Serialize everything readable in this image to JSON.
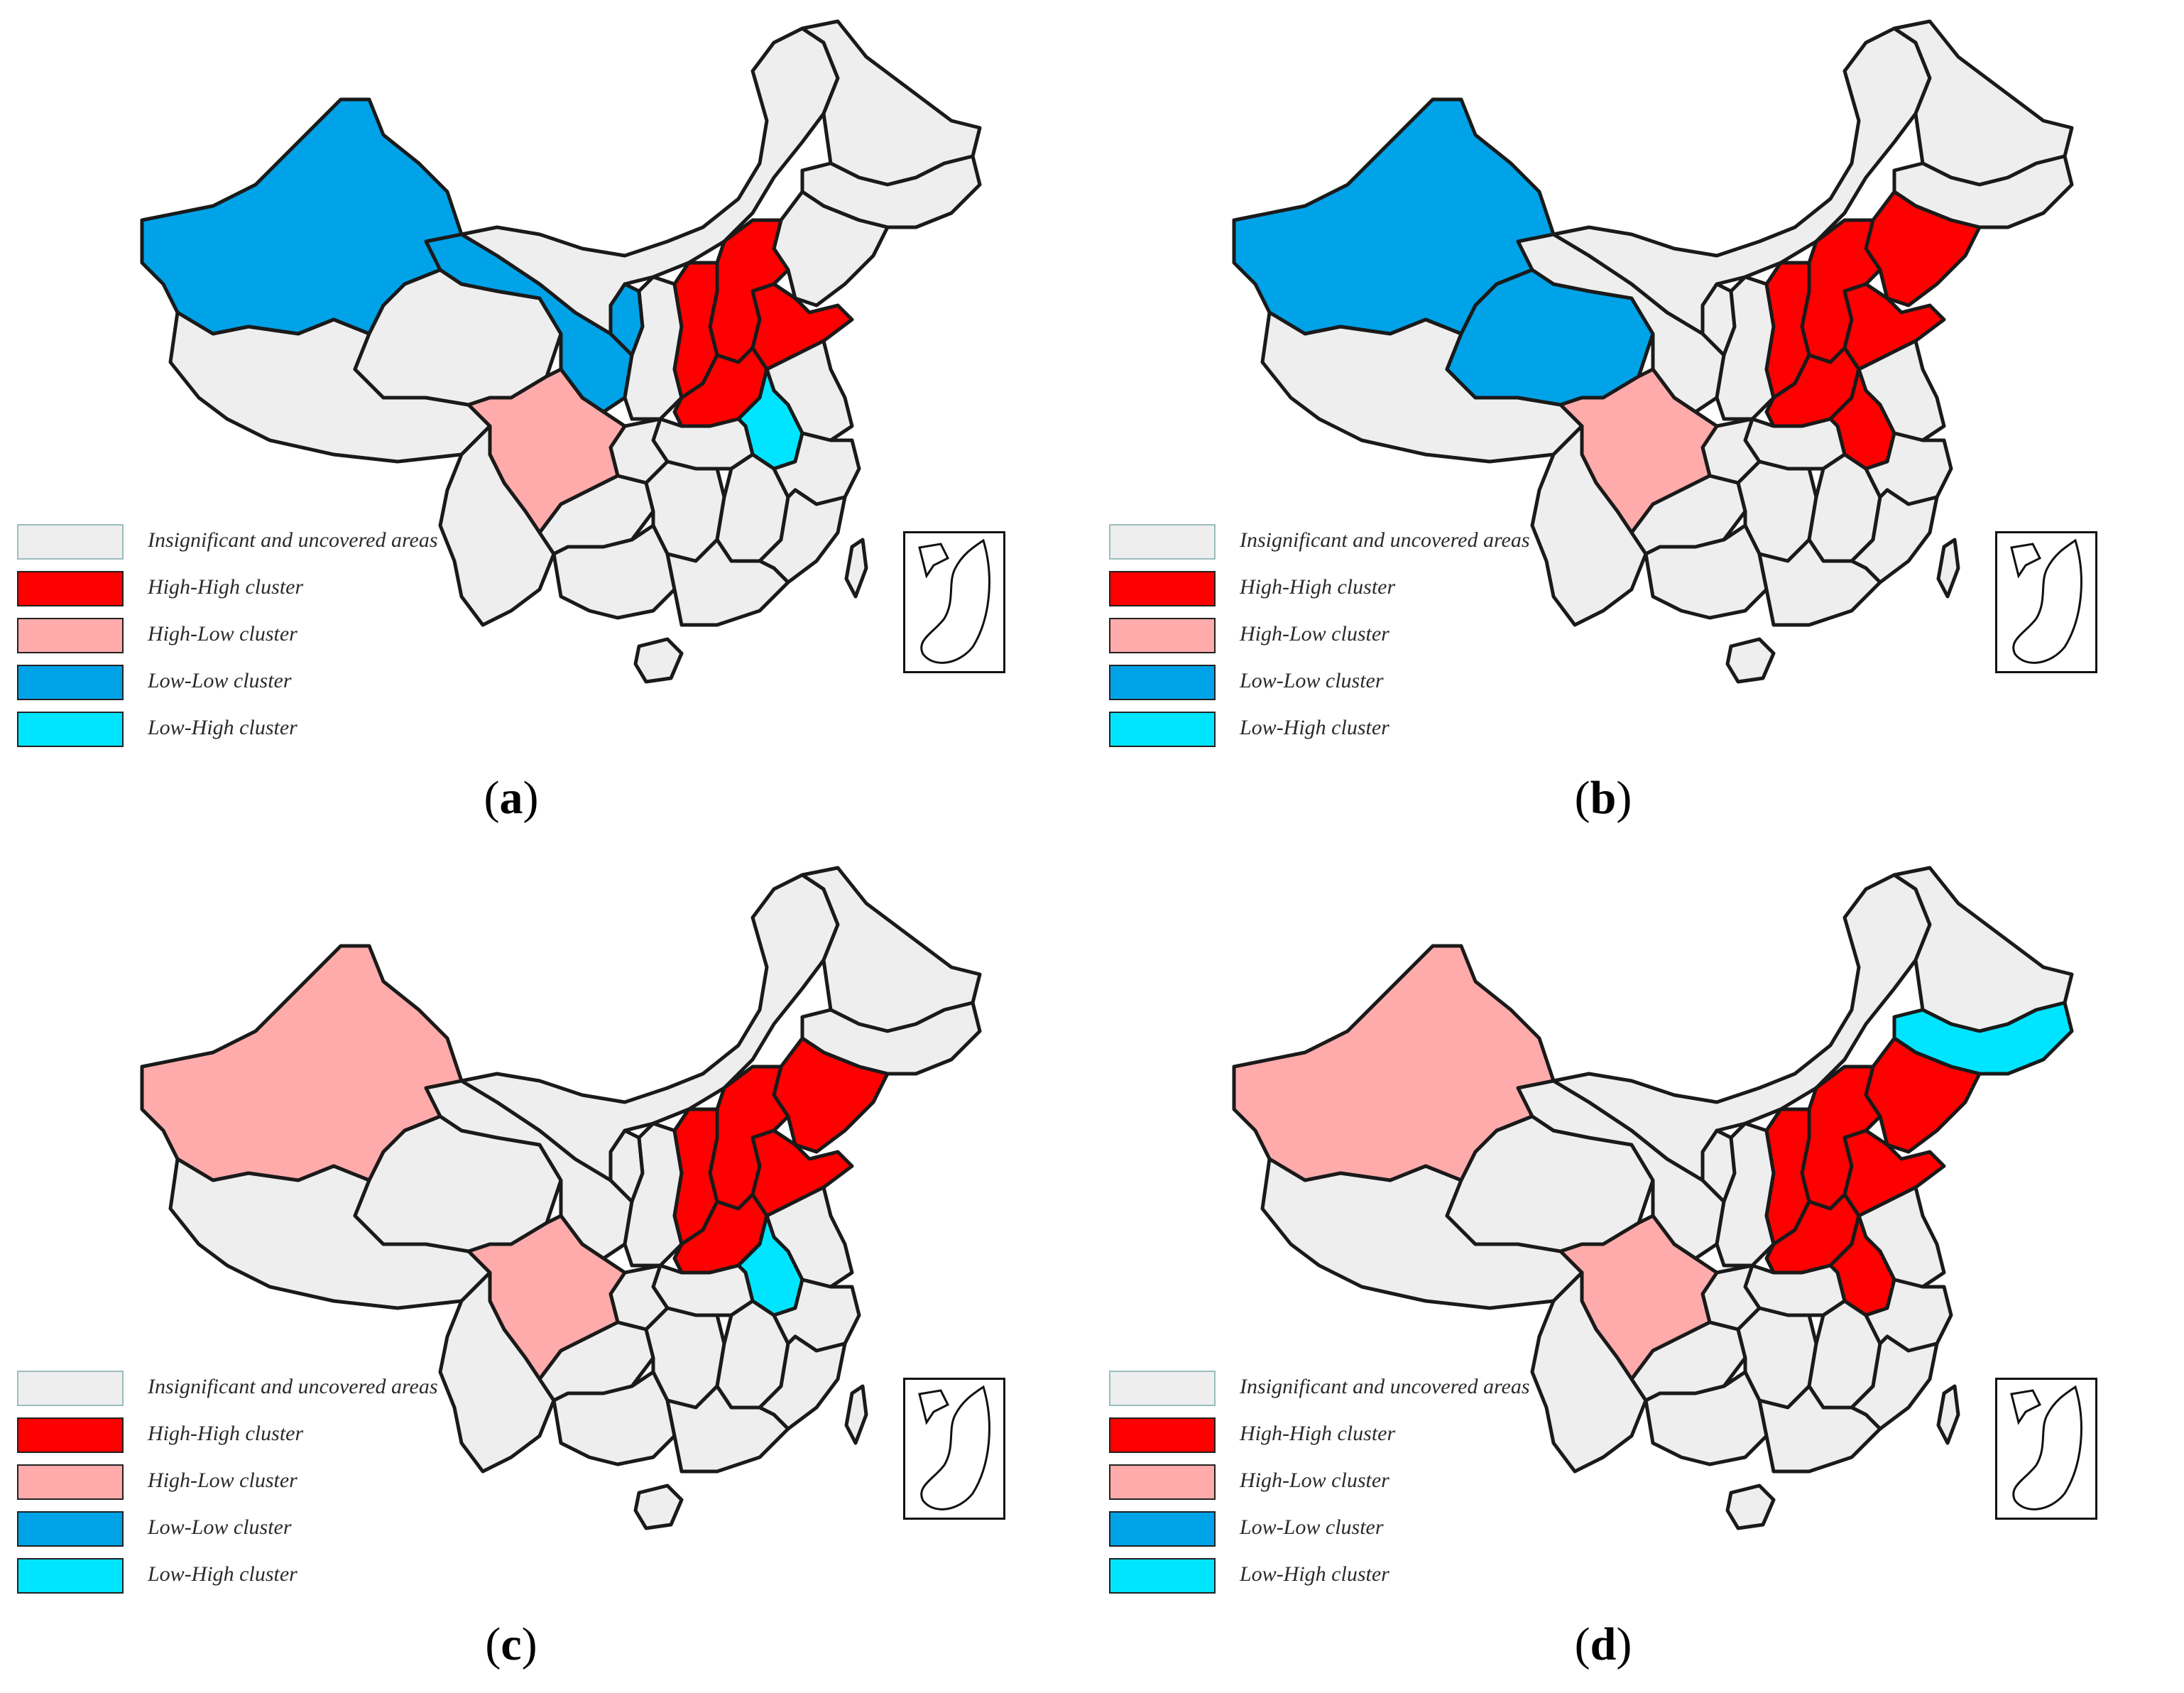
{
  "legend": {
    "insignificant": "Insignificant and uncovered areas",
    "high_high": "High-High cluster",
    "high_low": "High-Low cluster",
    "low_low": "Low-Low cluster",
    "low_high": "Low-High cluster"
  },
  "colors": {
    "insignificant": "#eeeeee",
    "high_high": "#ff0000",
    "high_low": "#ffabab",
    "low_low": "#00a2e8",
    "low_high": "#00e5ff",
    "border": "#1a1a1a"
  },
  "panels": [
    {
      "caption": "a",
      "regions": {
        "xinjiang": "low_low",
        "gansu": "low_low",
        "qinghai": "insignificant",
        "ningxia": "low_low",
        "hebei": "high_high",
        "shanxi": "high_high",
        "shandong": "high_high",
        "henan": "high_high",
        "anhui": "low_high",
        "jiangsu": "insignificant",
        "liaoning": "insignificant",
        "jilin": "insignificant",
        "heilongjiang": "insignificant",
        "sichuan": "high_low",
        "tibet": "insignificant"
      }
    },
    {
      "caption": "b",
      "regions": {
        "xinjiang": "low_low",
        "gansu": "insignificant",
        "qinghai": "low_low",
        "ningxia": "insignificant",
        "hebei": "high_high",
        "shanxi": "high_high",
        "shandong": "high_high",
        "henan": "high_high",
        "anhui": "high_high",
        "jiangsu": "insignificant",
        "liaoning": "high_high",
        "jilin": "insignificant",
        "heilongjiang": "insignificant",
        "sichuan": "high_low",
        "tibet": "insignificant"
      }
    },
    {
      "caption": "c",
      "regions": {
        "xinjiang": "high_low",
        "gansu": "insignificant",
        "qinghai": "insignificant",
        "ningxia": "insignificant",
        "hebei": "high_high",
        "shanxi": "high_high",
        "shandong": "high_high",
        "henan": "high_high",
        "anhui": "low_high",
        "jiangsu": "insignificant",
        "liaoning": "high_high",
        "jilin": "insignificant",
        "heilongjiang": "insignificant",
        "sichuan": "high_low",
        "tibet": "insignificant"
      }
    },
    {
      "caption": "d",
      "regions": {
        "xinjiang": "high_low",
        "gansu": "insignificant",
        "qinghai": "insignificant",
        "ningxia": "insignificant",
        "hebei": "high_high",
        "shanxi": "high_high",
        "shandong": "high_high",
        "henan": "high_high",
        "anhui": "high_high",
        "jiangsu": "insignificant",
        "liaoning": "high_high",
        "jilin": "low_high",
        "heilongjiang": "insignificant",
        "sichuan": "high_low",
        "tibet": "insignificant"
      }
    }
  ]
}
